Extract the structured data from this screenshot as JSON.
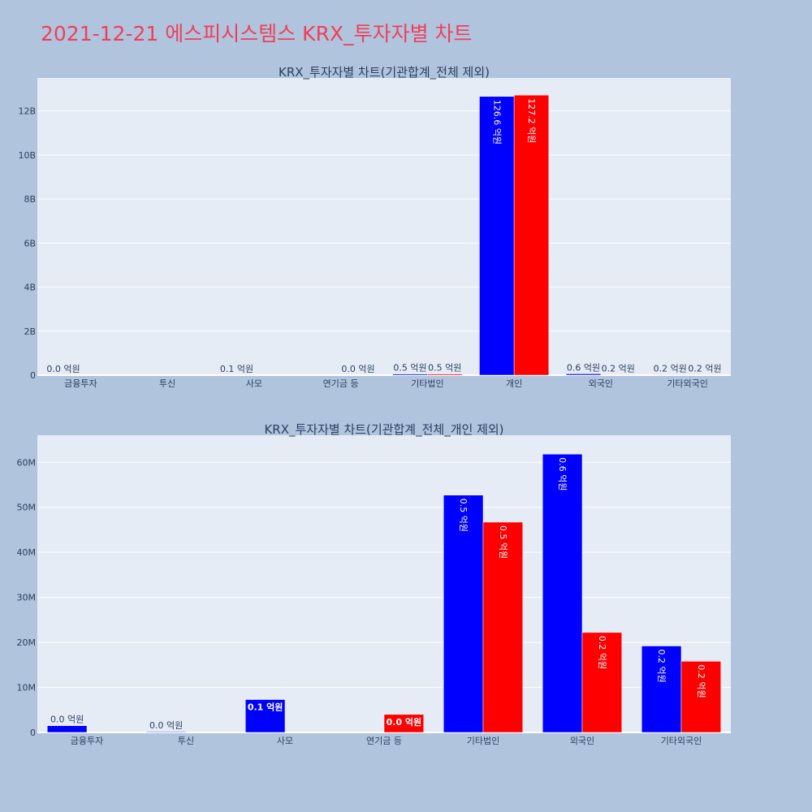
{
  "page": {
    "title": "2021-12-21 에스피시스템스 KRX_투자자별 차트"
  },
  "colors": {
    "background": "#b0c4de",
    "plot_bg": "#e5ecf6",
    "title": "#ef4058",
    "buy": "#0000ff",
    "sell": "#ff0000"
  },
  "chart_data": [
    {
      "type": "bar",
      "title": "KRX_투자자별 차트(기관합계_전체 제외)",
      "categories": [
        "금융투자",
        "투신",
        "사모",
        "연기금 등",
        "기타법인",
        "개인",
        "외국인",
        "기타외국인"
      ],
      "ylim": [
        0,
        13500000000
      ],
      "yticks": [
        {
          "v": 0,
          "label": "0"
        },
        {
          "v": 2000000000,
          "label": "2B"
        },
        {
          "v": 4000000000,
          "label": "4B"
        },
        {
          "v": 6000000000,
          "label": "6B"
        },
        {
          "v": 8000000000,
          "label": "8B"
        },
        {
          "v": 10000000000,
          "label": "10B"
        },
        {
          "v": 12000000000,
          "label": "12B"
        }
      ],
      "grid": true,
      "series": [
        {
          "color": "#0000ff",
          "values": [
            1000000,
            0,
            7000000,
            0,
            50000000,
            12660000000,
            60000000,
            20000000
          ],
          "labels": [
            "0.0 억원",
            "",
            "0.1 억원",
            "",
            "0.5 억원",
            "126.6 억원",
            "0.6 억원",
            "0.2 억원"
          ]
        },
        {
          "color": "#ff0000",
          "values": [
            0,
            0,
            0,
            1000000,
            50000000,
            12720000000,
            20000000,
            20000000
          ],
          "labels": [
            "",
            "",
            "",
            "0.0 억원",
            "0.5 억원",
            "127.2 억원",
            "0.2 억원",
            "0.2 억원"
          ]
        }
      ]
    },
    {
      "type": "bar",
      "title": "KRX_투자자별 차트(기관합계_전체_개인 제외)",
      "categories": [
        "금융투자",
        "투신",
        "사모",
        "연기금 등",
        "기타법인",
        "외국인",
        "기타외국인"
      ],
      "ylim": [
        0,
        66000000
      ],
      "yticks": [
        {
          "v": 0,
          "label": "0"
        },
        {
          "v": 10000000,
          "label": "10M"
        },
        {
          "v": 20000000,
          "label": "20M"
        },
        {
          "v": 30000000,
          "label": "30M"
        },
        {
          "v": 40000000,
          "label": "40M"
        },
        {
          "v": 50000000,
          "label": "50M"
        },
        {
          "v": 60000000,
          "label": "60M"
        }
      ],
      "grid": true,
      "series": [
        {
          "color": "#0000ff",
          "values": [
            1500000,
            150000,
            7300000,
            0,
            52700000,
            61800000,
            19200000
          ],
          "labels": [
            "0.0 억원",
            "0.0 억원",
            "0.1 억원",
            "",
            "0.5 억원",
            "0.6 억원",
            "0.2 억원"
          ]
        },
        {
          "color": "#ff0000",
          "values": [
            0,
            0,
            0,
            4000000,
            46700000,
            22200000,
            15800000
          ],
          "labels": [
            "",
            "",
            "",
            "0.0 억원",
            "0.5 억원",
            "0.2 억원",
            "0.2 억원"
          ]
        }
      ]
    }
  ]
}
